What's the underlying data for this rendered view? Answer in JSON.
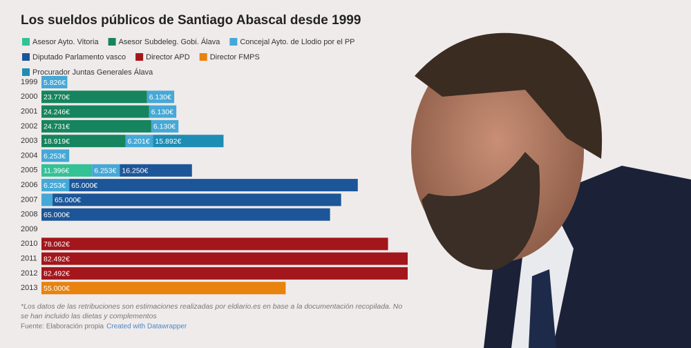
{
  "chart_data": {
    "type": "stacked-bar",
    "orientation": "horizontal",
    "title": "Los sueldos públicos de Santiago Abascal desde 1999",
    "categories": [
      "1999",
      "2000",
      "2001",
      "2002",
      "2003",
      "2004",
      "2005",
      "2006",
      "2007",
      "2008",
      "2009",
      "2010",
      "2011",
      "2012",
      "2013"
    ],
    "series": [
      {
        "name": "Asesor Ayto. Vitoria",
        "color": "#33c196",
        "values": [
          null,
          null,
          null,
          null,
          null,
          null,
          11396,
          null,
          null,
          null,
          null,
          null,
          null,
          null,
          null
        ],
        "value_labels": [
          null,
          null,
          null,
          null,
          null,
          null,
          "11.396€",
          null,
          null,
          null,
          null,
          null,
          null,
          null,
          null
        ]
      },
      {
        "name": "Asesor Subdeleg. Gobi. Álava",
        "color": "#16845e",
        "values": [
          null,
          23770,
          24246,
          24731,
          18919,
          null,
          null,
          null,
          null,
          null,
          null,
          null,
          null,
          null,
          null
        ],
        "value_labels": [
          null,
          "23.770€",
          "24.246€",
          "24.731€",
          "18.919€",
          null,
          null,
          null,
          null,
          null,
          null,
          null,
          null,
          null,
          null
        ]
      },
      {
        "name": "Concejal Ayto. de Llodio por el PP",
        "color": "#45a8d6",
        "values": [
          5826,
          6130,
          6130,
          6130,
          6201,
          6253,
          6253,
          6253,
          2500,
          null,
          null,
          null,
          null,
          null,
          null
        ],
        "value_labels": [
          "5.826€",
          "6.130€",
          "6.130€",
          "6.130€",
          "6.201€",
          "6.253€",
          "6.253€",
          "6.253€",
          null,
          null,
          null,
          null,
          null,
          null,
          null
        ]
      },
      {
        "name": "Diputado Parlamento vasco",
        "color": "#1c5698",
        "values": [
          null,
          null,
          null,
          null,
          null,
          null,
          16250,
          65000,
          65000,
          65000,
          null,
          null,
          null,
          null,
          null
        ],
        "value_labels": [
          null,
          null,
          null,
          null,
          null,
          null,
          "16.250€",
          "65.000€",
          "65.000€",
          "65.000€",
          null,
          null,
          null,
          null,
          null
        ]
      },
      {
        "name": "Director APD",
        "color": "#a3161b",
        "values": [
          null,
          null,
          null,
          null,
          null,
          null,
          null,
          null,
          null,
          null,
          null,
          78062,
          82492,
          82492,
          null
        ],
        "value_labels": [
          null,
          null,
          null,
          null,
          null,
          null,
          null,
          null,
          null,
          null,
          null,
          "78.062€",
          "82.492€",
          "82.492€",
          null
        ]
      },
      {
        "name": "Director FMPS",
        "color": "#e8830e",
        "values": [
          null,
          null,
          null,
          null,
          null,
          null,
          null,
          null,
          null,
          null,
          null,
          null,
          null,
          null,
          55000
        ],
        "value_labels": [
          null,
          null,
          null,
          null,
          null,
          null,
          null,
          null,
          null,
          null,
          null,
          null,
          null,
          null,
          "55.000€"
        ]
      },
      {
        "name": "Procurador Juntas Generales Álava",
        "color": "#1e8db4",
        "values": [
          null,
          null,
          null,
          null,
          15892,
          null,
          null,
          null,
          null,
          null,
          null,
          null,
          null,
          null,
          null
        ],
        "value_labels": [
          null,
          null,
          null,
          null,
          "15.892€",
          null,
          null,
          null,
          null,
          null,
          null,
          null,
          null,
          null,
          null
        ]
      }
    ],
    "note": "*Los datos de las retribuciones son estimaciones realizadas por eldiario.es en base a la documentación recopilada. No se han incluido las dietas y complementos",
    "source": "Fuente: Elaboración propia",
    "credit": "Created with Datawrapper"
  }
}
